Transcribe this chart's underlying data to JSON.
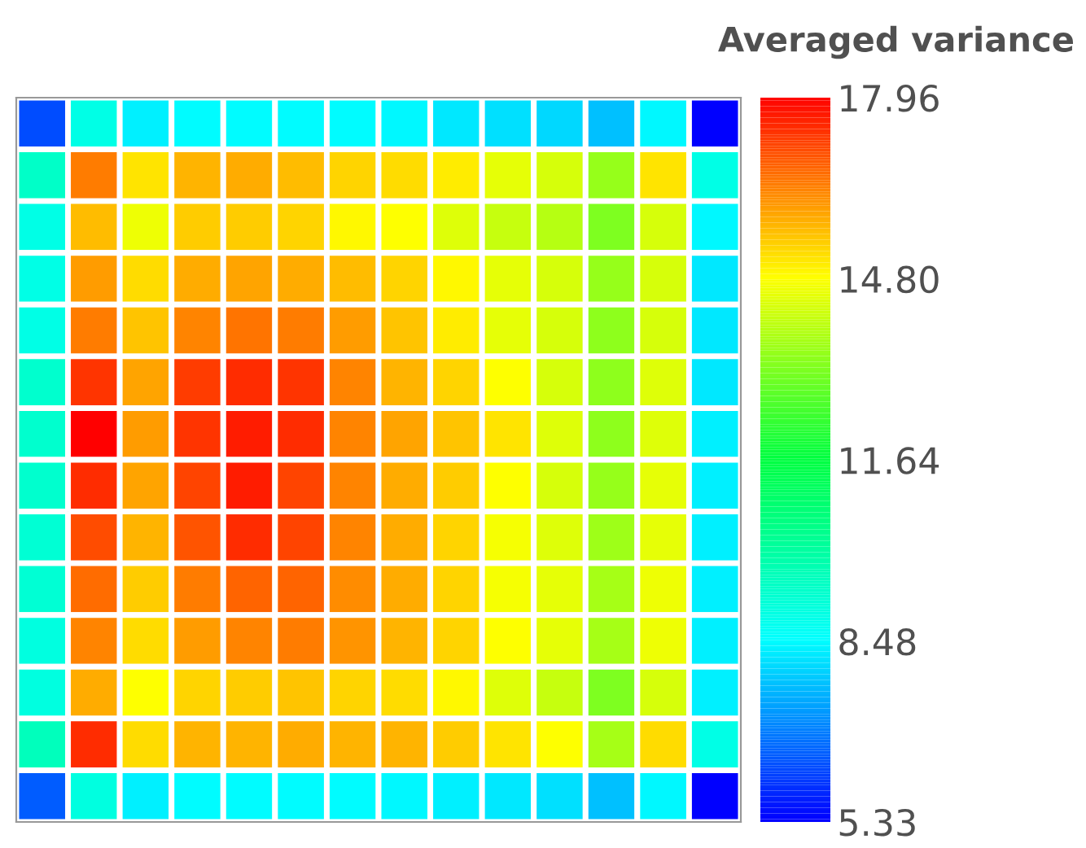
{
  "chart_data": {
    "type": "heatmap",
    "clabel": "Averaged variance",
    "categories": [
      null,
      null,
      null,
      null,
      null,
      null,
      null,
      null,
      null,
      null,
      null,
      null,
      null,
      null
    ],
    "y_categories": [
      null,
      null,
      null,
      null,
      null,
      null,
      null,
      null,
      null,
      null,
      null,
      null,
      null,
      null
    ],
    "clim": [
      5.33,
      17.96
    ],
    "cticks": [
      5.33,
      8.48,
      11.64,
      {
        "value": 14.8,
        "label": "14.80"
      },
      17.96
    ],
    "cells": [
      [
        6.3,
        8.9,
        8.3,
        8.45,
        8.45,
        8.45,
        8.45,
        8.4,
        8.2,
        8.1,
        8.0,
        7.7,
        8.4,
        5.33
      ],
      [
        9.4,
        16.4,
        15.1,
        15.7,
        15.8,
        15.6,
        15.3,
        15.2,
        15.0,
        14.5,
        14.3,
        13.5,
        15.1,
        8.9
      ],
      [
        8.9,
        15.6,
        14.6,
        15.4,
        15.4,
        15.3,
        14.9,
        14.8,
        14.4,
        14.1,
        13.9,
        13.2,
        14.3,
        8.4
      ],
      [
        8.9,
        16.0,
        15.2,
        15.8,
        15.9,
        15.8,
        15.6,
        15.3,
        14.9,
        14.5,
        14.3,
        13.5,
        14.3,
        8.2
      ],
      [
        8.9,
        16.4,
        15.5,
        16.3,
        16.5,
        16.4,
        16.0,
        15.5,
        15.0,
        14.5,
        14.3,
        13.4,
        14.3,
        8.2
      ],
      [
        9.3,
        17.3,
        15.9,
        17.2,
        17.4,
        17.3,
        16.3,
        15.7,
        15.3,
        14.8,
        14.3,
        13.4,
        14.4,
        8.2
      ],
      [
        9.3,
        17.96,
        16.0,
        17.3,
        17.6,
        17.4,
        16.3,
        15.9,
        15.5,
        15.1,
        14.4,
        13.4,
        14.4,
        8.3
      ],
      [
        9.3,
        17.4,
        15.9,
        17.1,
        17.6,
        17.1,
        16.3,
        15.8,
        15.4,
        14.8,
        14.3,
        13.5,
        14.5,
        8.3
      ],
      [
        9.2,
        17.0,
        15.7,
        16.9,
        17.4,
        17.1,
        16.3,
        15.8,
        15.3,
        14.7,
        14.4,
        13.6,
        14.5,
        8.3
      ],
      [
        9.2,
        16.6,
        15.4,
        16.4,
        16.7,
        16.7,
        16.2,
        15.8,
        15.3,
        14.7,
        14.5,
        13.7,
        14.6,
        8.3
      ],
      [
        9.0,
        16.3,
        15.2,
        16.0,
        16.3,
        16.4,
        16.1,
        15.7,
        15.3,
        14.8,
        14.5,
        13.7,
        14.6,
        8.3
      ],
      [
        9.0,
        15.8,
        14.8,
        15.3,
        15.4,
        15.5,
        15.3,
        15.2,
        14.9,
        14.4,
        14.1,
        13.2,
        14.3,
        8.3
      ],
      [
        9.6,
        17.4,
        15.2,
        15.7,
        15.7,
        15.8,
        15.7,
        15.7,
        15.4,
        15.1,
        14.8,
        13.7,
        15.2,
        8.9
      ],
      [
        6.5,
        9.0,
        8.3,
        8.45,
        8.45,
        8.45,
        8.45,
        8.4,
        8.3,
        8.2,
        8.1,
        7.7,
        8.4,
        5.33
      ]
    ]
  }
}
